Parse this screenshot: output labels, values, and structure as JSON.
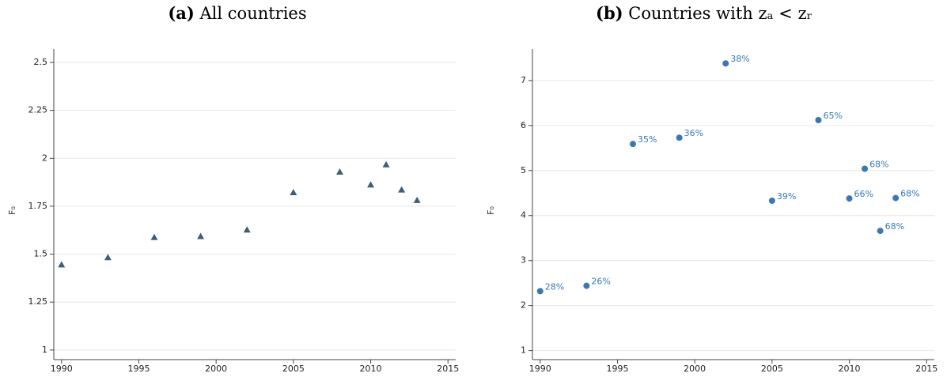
{
  "chart_data": [
    {
      "type": "scatter",
      "label": "(a)",
      "title": "All countries",
      "ylabel": "F₀",
      "x": [
        1990,
        1993,
        1996,
        1999,
        2002,
        2005,
        2008,
        2010,
        2011,
        2012,
        2013
      ],
      "values": [
        1.445,
        1.483,
        1.588,
        1.593,
        1.627,
        1.822,
        1.929,
        1.862,
        1.967,
        1.836,
        1.781
      ],
      "marker": "triangle",
      "color": "#3e5f7a",
      "xlim": [
        1989.5,
        2015.5
      ],
      "xticks": [
        1990,
        1995,
        2000,
        2005,
        2010,
        2015
      ],
      "ylim": [
        0.95,
        2.57
      ],
      "yticks": [
        1,
        1.25,
        1.5,
        1.75,
        2,
        2.25,
        2.5
      ],
      "grid": true
    },
    {
      "type": "scatter",
      "label": "(b)",
      "title": "Countries with zₐ < zᵣ",
      "ylabel": "F₀",
      "x": [
        1990,
        1993,
        1996,
        1999,
        2002,
        2005,
        2008,
        2010,
        2011,
        2012,
        2013
      ],
      "values": [
        2.32,
        2.44,
        5.59,
        5.73,
        7.38,
        4.33,
        6.12,
        4.38,
        5.04,
        3.66,
        4.39
      ],
      "point_labels": [
        "28%",
        "26%",
        "35%",
        "36%",
        "38%",
        "39%",
        "65%",
        "66%",
        "68%",
        "68%",
        "68%"
      ],
      "marker": "circle",
      "color": "#3a78b5",
      "xlim": [
        1989.5,
        2015.5
      ],
      "xticks": [
        1990,
        1995,
        2000,
        2005,
        2010,
        2015
      ],
      "ylim": [
        0.8,
        7.7
      ],
      "yticks": [
        1,
        2,
        3,
        4,
        5,
        6,
        7
      ],
      "grid": true
    }
  ]
}
